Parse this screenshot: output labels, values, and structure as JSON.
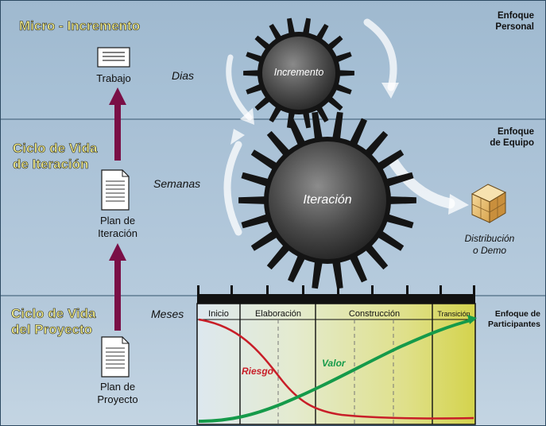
{
  "panels": {
    "top": {
      "title": "Micro - Incremento",
      "focus": "Enfoque\nPersonal",
      "time": "Dias",
      "doc": "Trabajo",
      "gear": "Incremento"
    },
    "middle": {
      "title": "Ciclo de Vida\nde Iteración",
      "focus": "Enfoque\nde Equipo",
      "time": "Semanas",
      "doc": "Plan de\nIteración",
      "gear": "Iteración",
      "box": "Distribución\no Demo"
    },
    "bottom": {
      "title": "Ciclo de Vida\ndel Proyecto",
      "focus": "Enfoque de\nParticipantes",
      "time": "Meses",
      "doc": "Plan de\nProyecto"
    }
  },
  "phases": [
    "Inicio",
    "Elaboración",
    "Construcción",
    "Transición"
  ],
  "curves": {
    "risk": "Riesgo",
    "value": "Valor"
  },
  "colors": {
    "title": "#f6f08a",
    "arrow": "#7a0f46",
    "risk": "#c81e28",
    "value": "#159a4a"
  }
}
